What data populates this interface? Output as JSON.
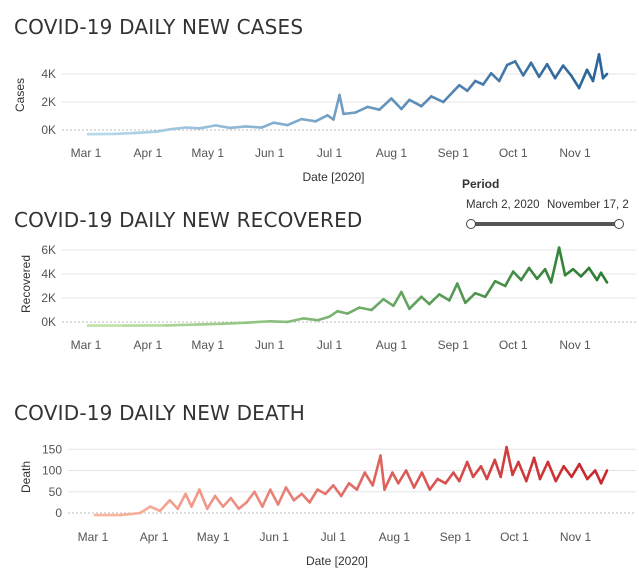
{
  "period": {
    "label": "Period",
    "start": "March 2, 2020",
    "end": "November 17, 2",
    "start_fraction": 0.0,
    "end_fraction": 1.0
  },
  "months": [
    "Mar 1",
    "Apr 1",
    "May 1",
    "Jun 1",
    "Jul 1",
    "Aug 1",
    "Sep 1",
    "Oct 1",
    "Nov 1"
  ],
  "chart_data": [
    {
      "type": "line",
      "title": "COVID-19 DAILY NEW CASES",
      "xlabel": "Date [2020]",
      "ylabel": "Cases",
      "yticks": [
        {
          "v": 0,
          "t": "0K"
        },
        {
          "v": 2000,
          "t": "2K"
        },
        {
          "v": 4000,
          "t": "4K"
        }
      ],
      "ylim": [
        0,
        5000
      ],
      "x_start": "2020-03-02",
      "x_end": "2020-11-17",
      "colors": [
        "#b7d9ec",
        "#2d6499"
      ],
      "points": [
        [
          "2020-03-02",
          -300
        ],
        [
          "2020-03-15",
          -280
        ],
        [
          "2020-03-25",
          -220
        ],
        [
          "2020-04-05",
          -120
        ],
        [
          "2020-04-12",
          50
        ],
        [
          "2020-04-20",
          180
        ],
        [
          "2020-04-27",
          120
        ],
        [
          "2020-05-05",
          330
        ],
        [
          "2020-05-12",
          150
        ],
        [
          "2020-05-20",
          260
        ],
        [
          "2020-05-28",
          170
        ],
        [
          "2020-06-03",
          520
        ],
        [
          "2020-06-10",
          350
        ],
        [
          "2020-06-17",
          780
        ],
        [
          "2020-06-24",
          620
        ],
        [
          "2020-06-30",
          1050
        ],
        [
          "2020-07-03",
          750
        ],
        [
          "2020-07-06",
          2500
        ],
        [
          "2020-07-08",
          1150
        ],
        [
          "2020-07-14",
          1250
        ],
        [
          "2020-07-20",
          1650
        ],
        [
          "2020-07-26",
          1450
        ],
        [
          "2020-08-01",
          2250
        ],
        [
          "2020-08-06",
          1500
        ],
        [
          "2020-08-10",
          2150
        ],
        [
          "2020-08-16",
          1700
        ],
        [
          "2020-08-21",
          2400
        ],
        [
          "2020-08-27",
          2000
        ],
        [
          "2020-09-01",
          2750
        ],
        [
          "2020-09-04",
          3200
        ],
        [
          "2020-09-08",
          2800
        ],
        [
          "2020-09-12",
          3500
        ],
        [
          "2020-09-16",
          3250
        ],
        [
          "2020-09-20",
          4050
        ],
        [
          "2020-09-24",
          3500
        ],
        [
          "2020-09-28",
          4650
        ],
        [
          "2020-10-02",
          4900
        ],
        [
          "2020-10-06",
          3900
        ],
        [
          "2020-10-10",
          4800
        ],
        [
          "2020-10-14",
          3800
        ],
        [
          "2020-10-18",
          4700
        ],
        [
          "2020-10-22",
          3700
        ],
        [
          "2020-10-26",
          4600
        ],
        [
          "2020-10-30",
          3900
        ],
        [
          "2020-11-03",
          3000
        ],
        [
          "2020-11-07",
          4300
        ],
        [
          "2020-11-10",
          3500
        ],
        [
          "2020-11-13",
          5400
        ],
        [
          "2020-11-15",
          3700
        ],
        [
          "2020-11-17",
          4000
        ]
      ]
    },
    {
      "type": "line",
      "title": "COVID-19 DAILY NEW RECOVERED",
      "xlabel": "",
      "ylabel": "Recovered",
      "yticks": [
        {
          "v": 0,
          "t": "0K"
        },
        {
          "v": 2000,
          "t": "2K"
        },
        {
          "v": 4000,
          "t": "4K"
        },
        {
          "v": 6000,
          "t": "6K"
        }
      ],
      "ylim": [
        0,
        6000
      ],
      "x_start": "2020-03-02",
      "x_end": "2020-11-17",
      "colors": [
        "#bfe3a8",
        "#2f7e35"
      ],
      "points": [
        [
          "2020-03-02",
          -300
        ],
        [
          "2020-03-20",
          -300
        ],
        [
          "2020-04-10",
          -280
        ],
        [
          "2020-04-25",
          -220
        ],
        [
          "2020-05-08",
          -150
        ],
        [
          "2020-05-20",
          -60
        ],
        [
          "2020-06-01",
          60
        ],
        [
          "2020-06-10",
          10
        ],
        [
          "2020-06-18",
          300
        ],
        [
          "2020-06-25",
          150
        ],
        [
          "2020-07-01",
          450
        ],
        [
          "2020-07-05",
          900
        ],
        [
          "2020-07-10",
          700
        ],
        [
          "2020-07-16",
          1200
        ],
        [
          "2020-07-22",
          1000
        ],
        [
          "2020-07-28",
          1900
        ],
        [
          "2020-08-02",
          1350
        ],
        [
          "2020-08-06",
          2500
        ],
        [
          "2020-08-10",
          1100
        ],
        [
          "2020-08-16",
          2100
        ],
        [
          "2020-08-20",
          1500
        ],
        [
          "2020-08-25",
          2300
        ],
        [
          "2020-08-30",
          1800
        ],
        [
          "2020-09-03",
          3200
        ],
        [
          "2020-09-07",
          1600
        ],
        [
          "2020-09-12",
          2400
        ],
        [
          "2020-09-17",
          2100
        ],
        [
          "2020-09-22",
          3400
        ],
        [
          "2020-09-27",
          3000
        ],
        [
          "2020-10-01",
          4200
        ],
        [
          "2020-10-05",
          3500
        ],
        [
          "2020-10-09",
          4500
        ],
        [
          "2020-10-13",
          3600
        ],
        [
          "2020-10-17",
          4400
        ],
        [
          "2020-10-20",
          3300
        ],
        [
          "2020-10-24",
          6200
        ],
        [
          "2020-10-27",
          3900
        ],
        [
          "2020-10-31",
          4400
        ],
        [
          "2020-11-04",
          3800
        ],
        [
          "2020-11-08",
          4500
        ],
        [
          "2020-11-12",
          3500
        ],
        [
          "2020-11-14",
          4100
        ],
        [
          "2020-11-17",
          3300
        ]
      ]
    },
    {
      "type": "line",
      "title": "COVID-19 DAILY NEW DEATH",
      "xlabel": "Date [2020]",
      "ylabel": "Death",
      "yticks": [
        {
          "v": 0,
          "t": "0"
        },
        {
          "v": 50,
          "t": "50"
        },
        {
          "v": 100,
          "t": "100"
        },
        {
          "v": 150,
          "t": "150"
        }
      ],
      "ylim": [
        0,
        160
      ],
      "x_start": "2020-03-02",
      "x_end": "2020-11-17",
      "colors": [
        "#fbb6a0",
        "#c8282e"
      ],
      "points": [
        [
          "2020-03-02",
          -5
        ],
        [
          "2020-03-15",
          -5
        ],
        [
          "2020-03-25",
          0
        ],
        [
          "2020-03-30",
          15
        ],
        [
          "2020-04-04",
          5
        ],
        [
          "2020-04-09",
          30
        ],
        [
          "2020-04-13",
          10
        ],
        [
          "2020-04-17",
          45
        ],
        [
          "2020-04-20",
          15
        ],
        [
          "2020-04-24",
          55
        ],
        [
          "2020-04-28",
          10
        ],
        [
          "2020-05-02",
          40
        ],
        [
          "2020-05-06",
          15
        ],
        [
          "2020-05-10",
          35
        ],
        [
          "2020-05-14",
          10
        ],
        [
          "2020-05-18",
          25
        ],
        [
          "2020-05-22",
          50
        ],
        [
          "2020-05-26",
          15
        ],
        [
          "2020-05-30",
          55
        ],
        [
          "2020-06-03",
          20
        ],
        [
          "2020-06-07",
          60
        ],
        [
          "2020-06-11",
          30
        ],
        [
          "2020-06-15",
          45
        ],
        [
          "2020-06-19",
          25
        ],
        [
          "2020-06-23",
          55
        ],
        [
          "2020-06-27",
          45
        ],
        [
          "2020-07-01",
          65
        ],
        [
          "2020-07-05",
          40
        ],
        [
          "2020-07-09",
          70
        ],
        [
          "2020-07-13",
          55
        ],
        [
          "2020-07-17",
          95
        ],
        [
          "2020-07-21",
          65
        ],
        [
          "2020-07-25",
          135
        ],
        [
          "2020-07-27",
          55
        ],
        [
          "2020-07-31",
          95
        ],
        [
          "2020-08-03",
          70
        ],
        [
          "2020-08-07",
          100
        ],
        [
          "2020-08-11",
          60
        ],
        [
          "2020-08-15",
          95
        ],
        [
          "2020-08-19",
          55
        ],
        [
          "2020-08-23",
          80
        ],
        [
          "2020-08-27",
          70
        ],
        [
          "2020-08-31",
          95
        ],
        [
          "2020-09-03",
          75
        ],
        [
          "2020-09-07",
          120
        ],
        [
          "2020-09-10",
          85
        ],
        [
          "2020-09-14",
          110
        ],
        [
          "2020-09-17",
          80
        ],
        [
          "2020-09-21",
          125
        ],
        [
          "2020-09-24",
          85
        ],
        [
          "2020-09-27",
          155
        ],
        [
          "2020-09-30",
          90
        ],
        [
          "2020-10-03",
          120
        ],
        [
          "2020-10-07",
          75
        ],
        [
          "2020-10-11",
          130
        ],
        [
          "2020-10-14",
          80
        ],
        [
          "2020-10-18",
          120
        ],
        [
          "2020-10-22",
          75
        ],
        [
          "2020-10-26",
          110
        ],
        [
          "2020-10-30",
          85
        ],
        [
          "2020-11-03",
          115
        ],
        [
          "2020-11-07",
          80
        ],
        [
          "2020-11-11",
          100
        ],
        [
          "2020-11-14",
          70
        ],
        [
          "2020-11-17",
          100
        ]
      ]
    }
  ]
}
